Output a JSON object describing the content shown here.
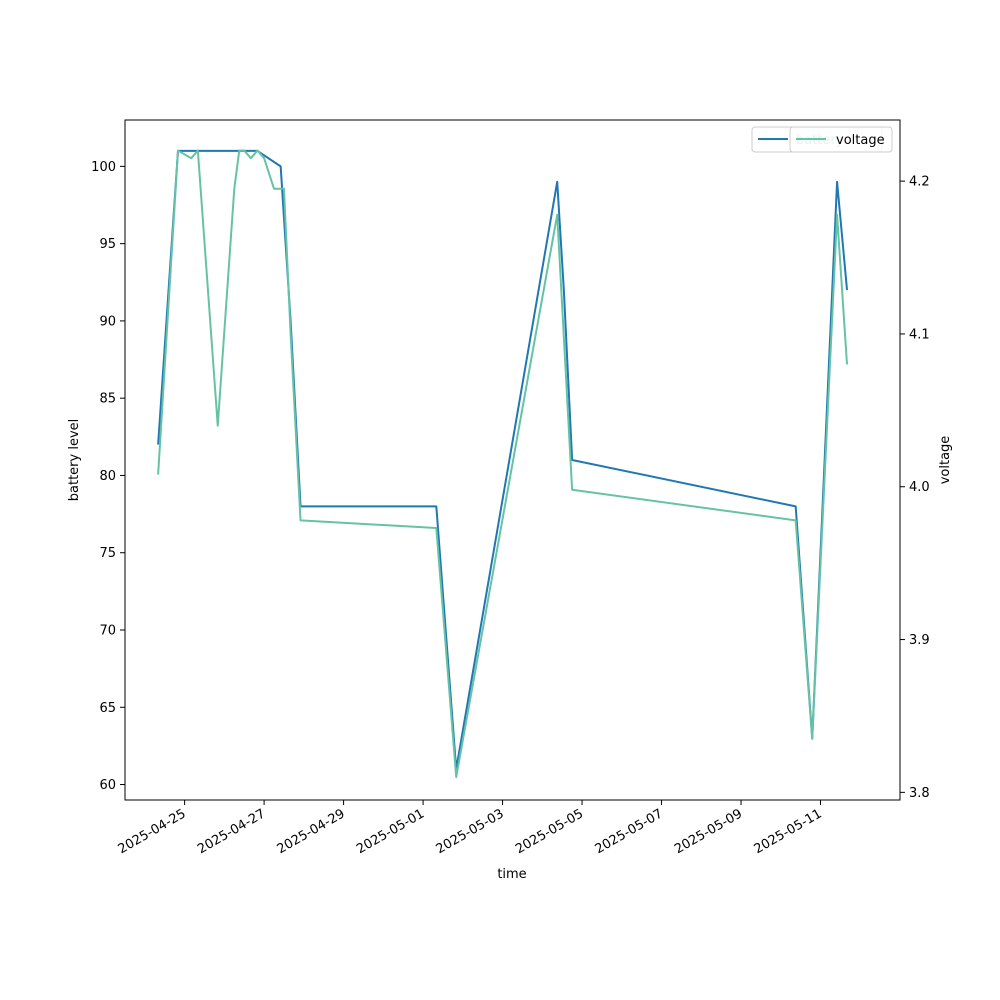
{
  "chart_data": {
    "type": "line",
    "title": "",
    "xlabel": "time",
    "ylabel": "battery level",
    "ylabel_right": "voltage",
    "grid": false,
    "legend_placement": "top-right",
    "x_ticks": [
      "2025-04-25",
      "2025-04-27",
      "2025-04-29",
      "2025-05-01",
      "2025-05-03",
      "2025-05-05",
      "2025-05-07",
      "2025-05-09",
      "2025-05-11"
    ],
    "xlim": [
      "2025-04-23 12:00",
      "2025-05-13 00:00"
    ],
    "ylim": [
      59,
      103
    ],
    "y_ticks": [
      60,
      65,
      70,
      75,
      80,
      85,
      90,
      95,
      100
    ],
    "y2lim": [
      3.795,
      4.24
    ],
    "y2_ticks": [
      3.8,
      3.9,
      4.0,
      4.1,
      4.2
    ],
    "series": [
      {
        "name": "battery",
        "axis": "left",
        "color": "#1f77b4",
        "x": [
          "2025-04-24 08:00",
          "2025-04-24 20:00",
          "2025-04-25 12:00",
          "2025-04-26 08:00",
          "2025-04-26 20:00",
          "2025-04-27 10:00",
          "2025-04-27 16:00",
          "2025-04-27 22:00",
          "2025-05-01 08:00",
          "2025-05-01 20:00",
          "2025-05-04 09:00",
          "2025-05-04 13:00",
          "2025-05-04 18:00",
          "2025-05-10 09:00",
          "2025-05-10 19:00",
          "2025-05-11 10:00",
          "2025-05-11 16:00"
        ],
        "y": [
          82,
          101,
          101,
          101,
          101,
          100,
          90,
          78,
          78,
          61,
          99,
          92,
          81,
          78,
          63,
          99,
          92
        ]
      },
      {
        "name": "voltage",
        "axis": "right",
        "color": "#66c2a5",
        "x": [
          "2025-04-24 08:00",
          "2025-04-24 20:00",
          "2025-04-25 04:00",
          "2025-04-25 08:00",
          "2025-04-25 20:00",
          "2025-04-26 06:00",
          "2025-04-26 09:00",
          "2025-04-26 12:00",
          "2025-04-26 16:00",
          "2025-04-26 20:00",
          "2025-04-27 00:00",
          "2025-04-27 06:00",
          "2025-04-27 12:00",
          "2025-04-27 16:00",
          "2025-04-27 22:00",
          "2025-05-01 08:00",
          "2025-05-01 20:00",
          "2025-05-04 09:00",
          "2025-05-04 18:00",
          "2025-05-10 09:00",
          "2025-05-10 19:00",
          "2025-05-11 10:00",
          "2025-05-11 16:00"
        ],
        "y": [
          4.008,
          4.22,
          4.215,
          4.22,
          4.04,
          4.195,
          4.22,
          4.22,
          4.215,
          4.22,
          4.215,
          4.195,
          4.195,
          4.1,
          3.978,
          3.973,
          3.81,
          4.178,
          3.998,
          3.978,
          3.835,
          4.178,
          4.08
        ]
      }
    ]
  }
}
